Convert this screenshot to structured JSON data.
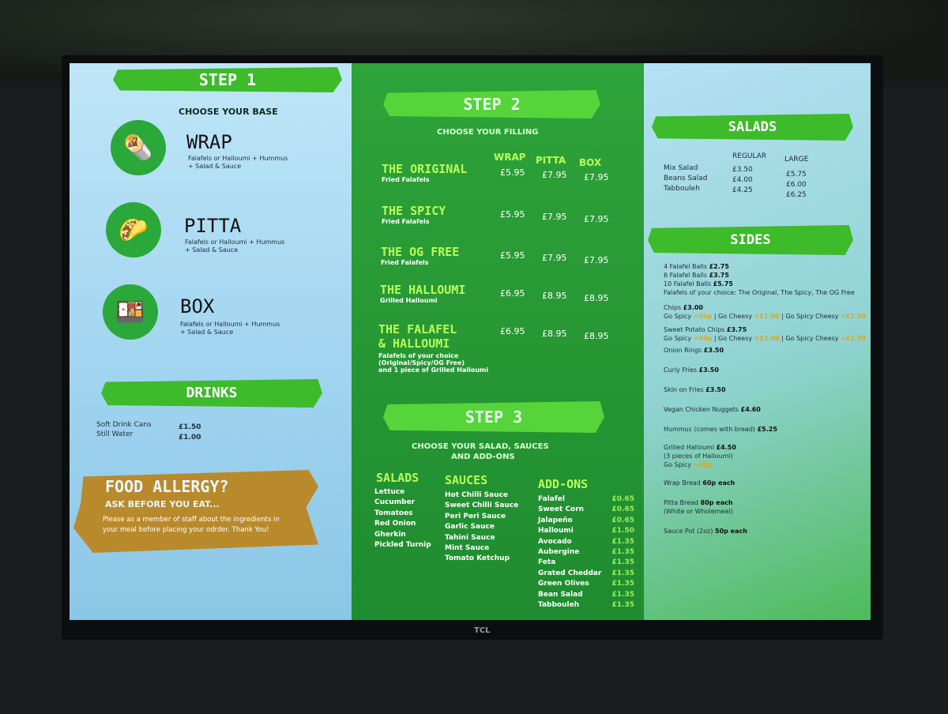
{
  "tv_brand": "TCL",
  "step1": {
    "title": "STEP 1",
    "subtitle": "CHOOSE YOUR BASE",
    "bases": [
      {
        "name": "WRAP",
        "desc1": "Falafels or Halloumi + Hummus",
        "desc2": "+ Salad & Sauce",
        "icon": "wrap-icon"
      },
      {
        "name": "PITTA",
        "desc1": "Falafels or Halloumi + Hummus",
        "desc2": "+ Salad & Sauce",
        "icon": "pitta-icon"
      },
      {
        "name": "BOX",
        "desc1": "Falafels or Halloumi + Hummus",
        "desc2": "+ Salad & Sauce",
        "icon": "box-icon"
      }
    ]
  },
  "drinks": {
    "title": "DRINKS",
    "items": [
      {
        "name": "Soft Drink Cans",
        "price": "£1.50"
      },
      {
        "name": "Still Water",
        "price": "£1.00"
      }
    ]
  },
  "allergy": {
    "title": "FOOD ALLERGY?",
    "subtitle": "ASK BEFORE YOU EAT...",
    "line1": "Please as a member of staff about the ingredients in",
    "line2": "your meal before placing your odrder. Thank You!"
  },
  "step2": {
    "title": "STEP 2",
    "subtitle": "CHOOSE YOUR FILLING",
    "columns": [
      "WRAP",
      "PITTA",
      "BOX"
    ],
    "fillings": [
      {
        "name": "THE ORIGINAL",
        "desc": "Fried Falafels",
        "prices": [
          "£5.95",
          "£7.95",
          "£7.95"
        ]
      },
      {
        "name": "THE SPICY",
        "desc": "Fried Falafels",
        "prices": [
          "£5.95",
          "£7.95",
          "£7.95"
        ]
      },
      {
        "name": "THE OG FREE",
        "desc": "Fried Falafels",
        "prices": [
          "£5.95",
          "£7.95",
          "£7.95"
        ]
      },
      {
        "name": "THE HALLOUMI",
        "desc": "Grilled Halloumi",
        "prices": [
          "£6.95",
          "£8.95",
          "£8.95"
        ]
      },
      {
        "name": "THE FALAFEL",
        "name2": "& HALLOUMI",
        "desc": "Falafels of your choice",
        "desc2": "(Original/Spicy/OG Free)",
        "desc3": "and 1 piece of Grilled Halloumi",
        "prices": [
          "£6.95",
          "£8.95",
          "£8.95"
        ]
      }
    ]
  },
  "step3": {
    "title": "STEP 3",
    "subtitle1": "CHOOSE YOUR SALAD, SAUCES",
    "subtitle2": "AND ADD-ONS",
    "salads_title": "SALADS",
    "salads": [
      "Lettuce",
      "Cucumber",
      "Tomatoes",
      "Red Onion",
      "Gherkin",
      "Pickled Turnip"
    ],
    "sauces_title": "SAUCES",
    "sauces": [
      "Hot Chilli Sauce",
      "Sweet Chilli Sauce",
      "Peri Peri Sauce",
      "Garlic Sauce",
      "Tahini Sauce",
      "Mint Sauce",
      "Tomato Ketchup"
    ],
    "addons_title": "ADD-ONS",
    "addons": [
      {
        "name": "Falafel",
        "price": "£0.65"
      },
      {
        "name": "Sweet Corn",
        "price": "£0.65"
      },
      {
        "name": "Jalapeño",
        "price": "£0.65"
      },
      {
        "name": "Halloumi",
        "price": "£1.50"
      },
      {
        "name": "Avocado",
        "price": "£1.35"
      },
      {
        "name": "Aubergine",
        "price": "£1.35"
      },
      {
        "name": "Feta",
        "price": "£1.35"
      },
      {
        "name": "Grated Cheddar",
        "price": "£1.35"
      },
      {
        "name": "Green Olives",
        "price": "£1.35"
      },
      {
        "name": "Bean Salad",
        "price": "£1.35"
      },
      {
        "name": "Tabbouleh",
        "price": "£1.35"
      }
    ]
  },
  "salads": {
    "title": "SALADS",
    "columns": [
      "REGULAR",
      "LARGE"
    ],
    "items": [
      {
        "name": "Mix Salad",
        "regular": "£3.50",
        "large": "£5.75"
      },
      {
        "name": "Beans Salad",
        "regular": "£4.00",
        "large": "£6.00"
      },
      {
        "name": "Tabbouleh",
        "regular": "£4.25",
        "large": "£6.25"
      }
    ]
  },
  "sides": {
    "title": "SIDES",
    "falafel": [
      {
        "name": "4 Falafel Balls",
        "price": "£2.75"
      },
      {
        "name": "6 Falafel Balls",
        "price": "£3.75"
      },
      {
        "name": "10 Falafel Balls",
        "price": "£5.75"
      }
    ],
    "falafel_note": "Falafels of your choice: The Original, The Spicy, The OG Free",
    "chips": {
      "name": "Chips",
      "price": "£3.00"
    },
    "sweet_potato": {
      "name": "Sweet Potato Chips",
      "price": "£3.75"
    },
    "options": {
      "spicy": "Go Spicy",
      "spicy_price": "+50p",
      "cheesy": "| Go Cheesy",
      "cheesy_price": "+£1.00",
      "spicy_cheesy": "| Go Spicy Cheesy",
      "spicy_cheesy_price": "+£1.50"
    },
    "items": [
      {
        "name": "Onion Rings",
        "price": "£3.50"
      },
      {
        "name": "Curly Fries",
        "price": "£3.50"
      },
      {
        "name": "Skin on Fries",
        "price": "£3.50"
      },
      {
        "name": "Vegan Chicken Nuggets",
        "price": "£4.60"
      },
      {
        "name": "Hummus (comes with bread)",
        "price": "£5.25"
      }
    ],
    "halloumi": {
      "name": "Grilled Halloumi",
      "price": "£4.50",
      "note": "(3 pieces of Halloumi)"
    },
    "wrap_bread": {
      "name": "Wrap Bread",
      "price": "60p each"
    },
    "pitta_bread": {
      "name": "Pitta Bread",
      "price": "80p each",
      "note": "(White or Wholemeal)"
    },
    "sauce_pot": {
      "name": "Sauce Pot (2oz)",
      "price": "50p each"
    }
  }
}
